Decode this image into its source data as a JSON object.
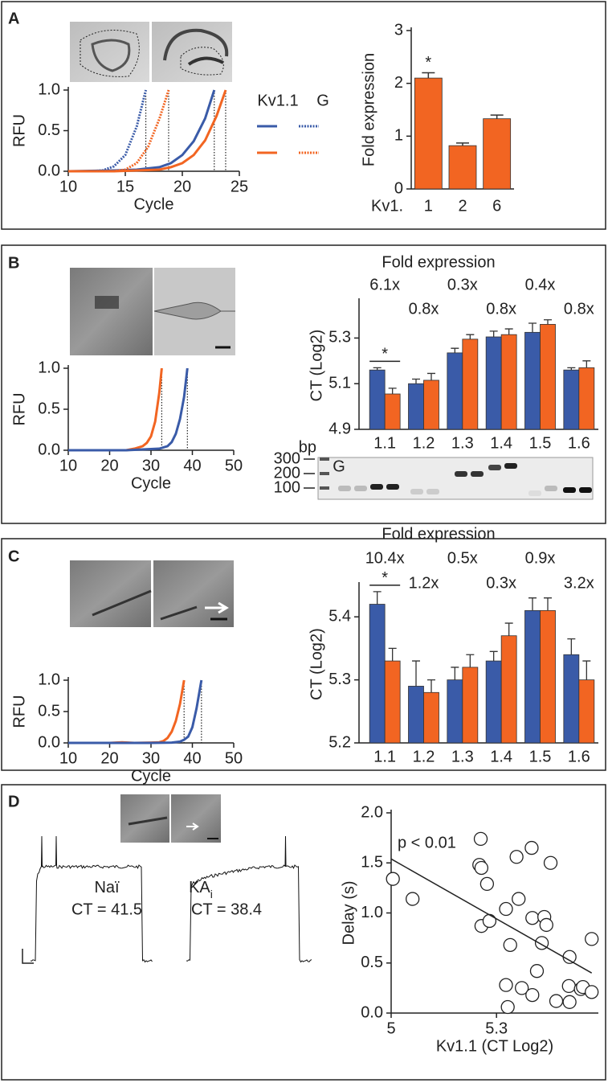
{
  "chart_data": [
    {
      "panel": "A",
      "type": "line",
      "ylabel": "RFU",
      "xlabel": "Cycle",
      "xlim": [
        10,
        25
      ],
      "ylim": [
        0,
        1
      ],
      "xticks": [
        10,
        15,
        20,
        25
      ],
      "yticks": [
        {
          "value": 0,
          "label": "0.0"
        },
        {
          "value": 0.5,
          "label": "0.5"
        },
        {
          "value": 1,
          "label": "1.0"
        }
      ],
      "thresholds": [
        16.8,
        18.8,
        22.8,
        23.8
      ],
      "series": [
        {
          "group": "Kv1.1",
          "color": "#3a5ba8",
          "dash": false,
          "x": [
            10,
            12,
            14,
            16,
            18,
            19,
            20,
            21,
            22,
            22.8
          ],
          "values": [
            0,
            0.005,
            0.01,
            0.02,
            0.05,
            0.1,
            0.2,
            0.37,
            0.65,
            1
          ]
        },
        {
          "group": "Kv1.1",
          "color": "#f26522",
          "dash": false,
          "x": [
            10,
            14,
            18,
            19,
            20,
            21,
            22,
            23,
            23.8
          ],
          "values": [
            0,
            0,
            0.02,
            0.05,
            0.1,
            0.2,
            0.38,
            0.68,
            1
          ]
        },
        {
          "group": "G",
          "color": "#3a5ba8",
          "dash": true,
          "x": [
            10,
            12,
            13,
            14,
            15,
            16,
            16.8
          ],
          "values": [
            0,
            0,
            0.01,
            0.06,
            0.2,
            0.55,
            1
          ]
        },
        {
          "group": "G",
          "color": "#f26522",
          "dash": true,
          "x": [
            10,
            14,
            15,
            16,
            17,
            18,
            18.8
          ],
          "values": [
            0,
            0,
            0.02,
            0.1,
            0.3,
            0.65,
            1
          ]
        }
      ]
    },
    {
      "type": "bar",
      "ylabel": "Fold expression",
      "category_prefix": "Kv1.",
      "categories": [
        "1",
        "2",
        "6"
      ],
      "values": [
        2.1,
        0.82,
        1.33
      ],
      "errors": [
        0.1,
        0.05,
        0.07
      ],
      "color": "#f26522",
      "ylim": [
        0,
        3
      ],
      "yticks": [
        0,
        1,
        2,
        3
      ],
      "annotation": {
        "text": "*",
        "category": "1"
      }
    },
    {
      "panel": "B",
      "type": "line",
      "ylabel": "RFU",
      "xlabel": "Cycle",
      "xlim": [
        10,
        50
      ],
      "ylim": [
        0,
        1
      ],
      "xticks": [
        10,
        20,
        30,
        40,
        50
      ],
      "yticks": [
        {
          "value": 0,
          "label": "0.0"
        },
        {
          "value": 0.5,
          "label": "0.5"
        },
        {
          "value": 1,
          "label": "1.0"
        }
      ],
      "thresholds": [
        32.6,
        38.8
      ],
      "series": [
        {
          "color": "#f26522",
          "dash": false,
          "x": [
            10,
            24,
            26,
            28,
            29,
            30,
            31,
            32,
            32.6
          ],
          "values": [
            0,
            0,
            0.02,
            0.05,
            0.09,
            0.17,
            0.35,
            0.7,
            1
          ]
        },
        {
          "color": "#3a5ba8",
          "dash": false,
          "x": [
            10,
            24,
            28,
            32,
            34,
            35,
            36,
            37,
            38,
            38.8
          ],
          "values": [
            0,
            0,
            0.01,
            0.02,
            0.05,
            0.1,
            0.2,
            0.38,
            0.65,
            1
          ]
        }
      ]
    },
    {
      "type": "grouped-bar",
      "ylabel": "CT (Log2)",
      "fold_title": "Fold expression",
      "fold_labels": [
        "6.1x",
        "0.8x",
        "0.3x",
        "0.8x",
        "0.4x",
        "0.8x"
      ],
      "categories": [
        "1.1",
        "1.2",
        "1.3",
        "1.4",
        "1.5",
        "1.6"
      ],
      "ylim": [
        4.9,
        5.46
      ],
      "yticks": [
        4.9,
        5.1,
        5.3
      ],
      "series": [
        {
          "color": "#3a5ba8",
          "values": [
            5.16,
            5.1,
            5.235,
            5.305,
            5.325,
            5.16
          ],
          "errors": [
            0.01,
            0.02,
            0.02,
            0.025,
            0.04,
            0.01
          ]
        },
        {
          "color": "#f26522",
          "values": [
            5.055,
            5.115,
            5.295,
            5.315,
            5.36,
            5.17
          ],
          "errors": [
            0.025,
            0.03,
            0.02,
            0.025,
            0.02,
            0.03
          ]
        }
      ],
      "annotation": {
        "text": "*",
        "category": "1.1"
      },
      "gel": {
        "unit": "bp",
        "ladder": [
          "300",
          "200",
          "100"
        ],
        "marker": "G"
      }
    },
    {
      "panel": "C",
      "type": "line",
      "ylabel": "RFU",
      "xlabel": "Cycle",
      "xlim": [
        10,
        50
      ],
      "ylim": [
        0,
        1
      ],
      "xticks": [
        10,
        20,
        30,
        40,
        50
      ],
      "yticks": [
        {
          "value": 0,
          "label": "0.0"
        },
        {
          "value": 0.5,
          "label": "0.5"
        },
        {
          "value": 1,
          "label": "1.0"
        }
      ],
      "thresholds": [
        38,
        42.2
      ],
      "series": [
        {
          "color": "#f26522",
          "dash": false,
          "x": [
            10,
            20,
            23,
            26,
            30,
            32,
            33,
            34,
            35,
            36,
            37,
            38
          ],
          "values": [
            0,
            0,
            0.01,
            0,
            0.005,
            0.01,
            0.03,
            0.08,
            0.18,
            0.35,
            0.62,
            1
          ]
        },
        {
          "color": "#3a5ba8",
          "dash": false,
          "x": [
            10,
            30,
            35,
            37,
            38,
            39,
            40,
            41,
            42.2
          ],
          "values": [
            0,
            0,
            0.005,
            0.02,
            0.05,
            0.1,
            0.25,
            0.55,
            1
          ]
        }
      ]
    },
    {
      "type": "grouped-bar",
      "ylabel": "CT (Log2)",
      "fold_title": "Fold expression",
      "fold_labels": [
        "10.4x",
        "1.2x",
        "0.5x",
        "0.3x",
        "0.9x",
        "3.2x"
      ],
      "categories": [
        "1.1",
        "1.2",
        "1.3",
        "1.4",
        "1.5",
        "1.6"
      ],
      "ylim": [
        5.2,
        5.45
      ],
      "yticks": [
        5.2,
        5.3,
        5.4
      ],
      "series": [
        {
          "color": "#3a5ba8",
          "values": [
            5.42,
            5.29,
            5.3,
            5.33,
            5.41,
            5.34
          ],
          "errors": [
            0.02,
            0.04,
            0.02,
            0.015,
            0.02,
            0.025
          ]
        },
        {
          "color": "#f26522",
          "values": [
            5.33,
            5.28,
            5.32,
            5.37,
            5.41,
            5.3
          ],
          "errors": [
            0.02,
            0.02,
            0.02,
            0.02,
            0.02,
            0.03
          ]
        }
      ],
      "annotation": {
        "text": "*",
        "category": "1.1"
      }
    },
    {
      "panel": "D",
      "type": "traces",
      "conditions": [
        {
          "name": "Naï",
          "ct": "CT = 41.5"
        },
        {
          "name": "KA",
          "subscript": "i",
          "ct": "CT = 38.4"
        }
      ]
    },
    {
      "type": "scatter",
      "ylabel": "Delay (s)",
      "xlabel": "Kv1.1 (CT Log2)",
      "annotation": "p < 0.01",
      "xlim": [
        5,
        5.59
      ],
      "ylim": [
        0,
        2
      ],
      "xticks": [
        5,
        5.3
      ],
      "yticks": [
        {
          "value": 0,
          "label": "0.0"
        },
        {
          "value": 0.5,
          "label": "0.5"
        },
        {
          "value": 1,
          "label": "1.0"
        },
        {
          "value": 1.5,
          "label": "1.5"
        },
        {
          "value": 2,
          "label": "2.0"
        }
      ],
      "x": [
        5.005,
        5.061,
        5.255,
        5.251,
        5.257,
        5.273,
        5.257,
        5.28,
        5.327,
        5.357,
        5.363,
        5.339,
        5.327,
        5.332,
        5.372,
        5.402,
        5.402,
        5.4,
        5.415,
        5.436,
        5.442,
        5.429,
        5.454,
        5.47,
        5.506,
        5.508,
        5.508,
        5.54,
        5.546,
        5.571,
        5.571
      ],
      "values": [
        1.34,
        1.14,
        1.74,
        1.48,
        1.45,
        1.29,
        0.87,
        0.92,
        1.04,
        1.56,
        1.14,
        0.68,
        0.28,
        0.06,
        0.25,
        0.18,
        0.95,
        1.65,
        0.42,
        0.96,
        0.88,
        0.7,
        1.5,
        0.12,
        0.27,
        0.11,
        0.56,
        0.24,
        0.26,
        0.21,
        0.74
      ],
      "fit": {
        "x": [
          5,
          5.571
        ],
        "values": [
          1.54,
          0.4
        ]
      }
    }
  ]
}
